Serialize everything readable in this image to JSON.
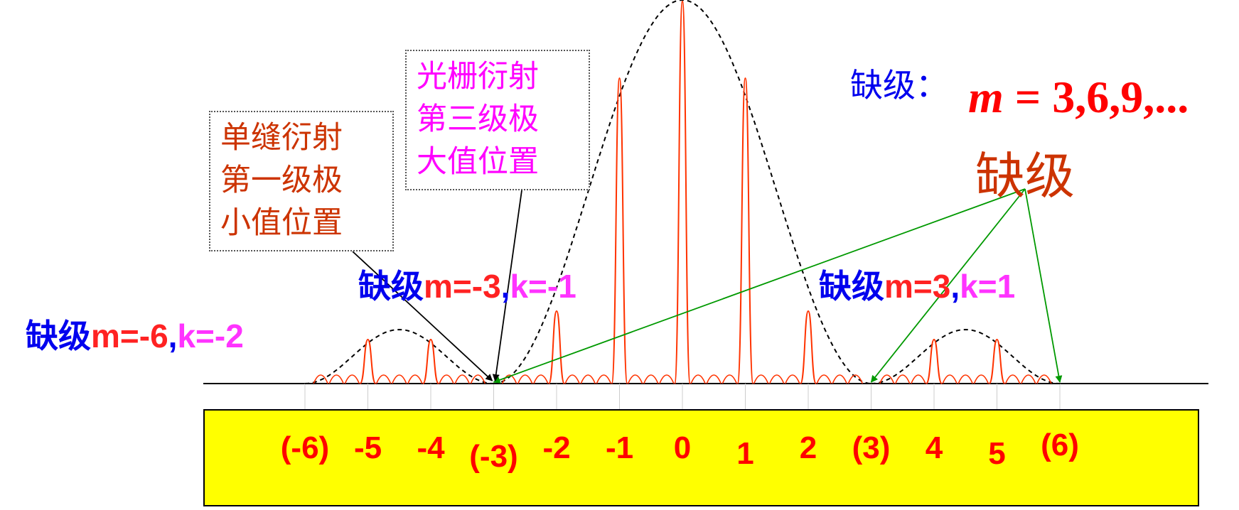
{
  "single_slit_box": {
    "lines": [
      "单缝衍射",
      "第一级极",
      "小值位置"
    ],
    "color": "#cc3300"
  },
  "grating_box": {
    "lines": [
      "光栅衍射",
      "第三级极",
      "大值位置"
    ],
    "color": "#ff00ff"
  },
  "missing_order_rule": {
    "label": "缺级：",
    "var": "m",
    "eq": " = ",
    "values": "3,6,9,..."
  },
  "missing_order_title": "缺级",
  "annotations": {
    "left_far": {
      "prefix": "缺级",
      "m": "m=-6",
      "sep": ",",
      "k": "k=-2"
    },
    "left_near": {
      "prefix": "缺级",
      "m": "m=-3",
      "sep": ",",
      "k": "k=-1"
    },
    "right": {
      "prefix": "缺级",
      "m": "m=3",
      "sep": ",",
      "k": "k=1"
    }
  },
  "orders": [
    "(-6)",
    "-5",
    "-4",
    "(-3)",
    "-2",
    "-1",
    "0",
    "1",
    "2",
    "(3)",
    "4",
    "5",
    "(6)"
  ],
  "colors": {
    "peaks": "#ff3300",
    "envelope": "#000000",
    "pointer_green": "#009900",
    "order_bar": "#ffff00",
    "order_text": "#ff0000",
    "blue": "#0000ee",
    "red": "#ff2222",
    "magenta": "#ff33ff"
  }
}
